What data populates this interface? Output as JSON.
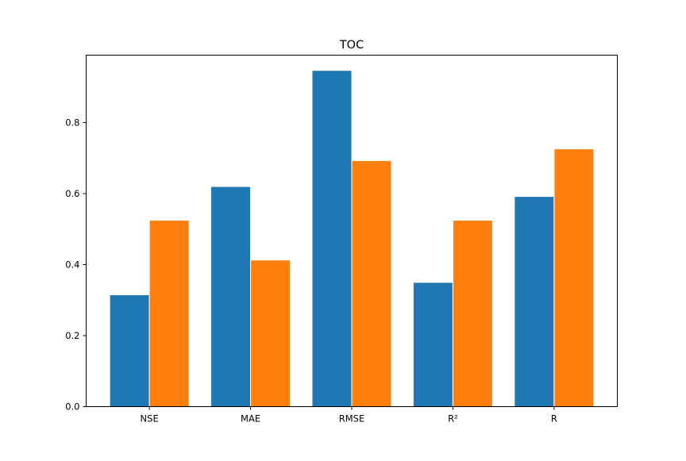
{
  "chart_data": {
    "type": "bar",
    "title": "TOC",
    "xlabel": "",
    "ylabel": "",
    "categories": [
      "NSE",
      "MAE",
      "RMSE",
      "R²",
      "R"
    ],
    "series": [
      {
        "values": [
          0.315,
          0.62,
          0.947,
          0.35,
          0.592
        ],
        "color": "#1f77b4"
      },
      {
        "values": [
          0.525,
          0.413,
          0.693,
          0.525,
          0.726
        ],
        "color": "#ff7f0e"
      }
    ],
    "ylim": [
      0,
      0.99
    ],
    "yticks": [
      "0.0",
      "0.2",
      "0.4",
      "0.6",
      "0.8"
    ],
    "grid": false,
    "legend": "none"
  }
}
